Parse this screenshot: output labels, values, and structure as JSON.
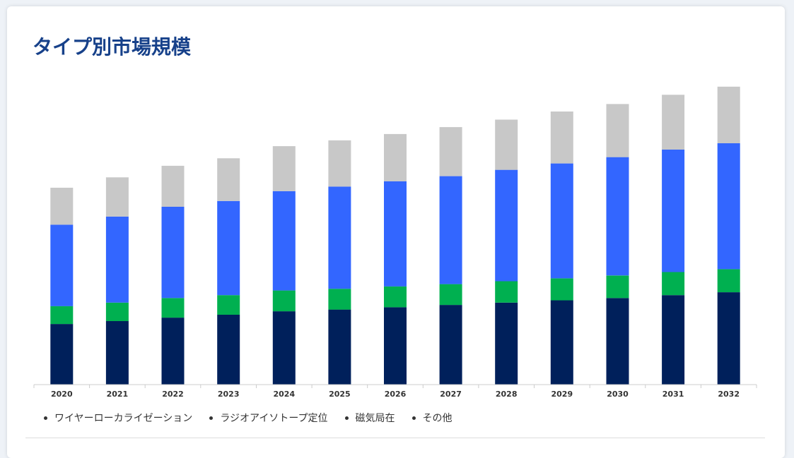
{
  "title": "タイプ別市場規模",
  "chart_data": {
    "type": "bar",
    "stacked": true,
    "categories": [
      "2020",
      "2021",
      "2022",
      "2023",
      "2024",
      "2025",
      "2026",
      "2027",
      "2028",
      "2029",
      "2030",
      "2031",
      "2032"
    ],
    "series": [
      {
        "name": "ワイヤーローカライゼーション",
        "color": "#00205b",
        "values": [
          21.0,
          22.0,
          23.2,
          24.2,
          25.4,
          26.0,
          26.8,
          27.6,
          28.4,
          29.2,
          30.0,
          31.0,
          32.0
        ]
      },
      {
        "name": "ラジオアイソトープ定位",
        "color": "#00b050",
        "values": [
          6.2,
          6.4,
          6.8,
          6.8,
          7.2,
          7.2,
          7.2,
          7.2,
          7.4,
          7.6,
          7.8,
          8.0,
          8.0
        ]
      },
      {
        "name": "磁気局在",
        "color": "#3366ff",
        "values": [
          28.2,
          29.8,
          31.6,
          32.6,
          34.4,
          35.4,
          36.4,
          37.4,
          38.6,
          39.8,
          41.0,
          42.4,
          43.6
        ]
      },
      {
        "name": "その他",
        "color": "#c8c8c8",
        "values": [
          12.8,
          13.6,
          14.2,
          14.8,
          15.6,
          16.0,
          16.4,
          17.0,
          17.4,
          18.0,
          18.4,
          19.0,
          19.6
        ]
      }
    ],
    "ylim": [
      0,
      110
    ],
    "grid": false,
    "legend_position": "bottom-left"
  }
}
